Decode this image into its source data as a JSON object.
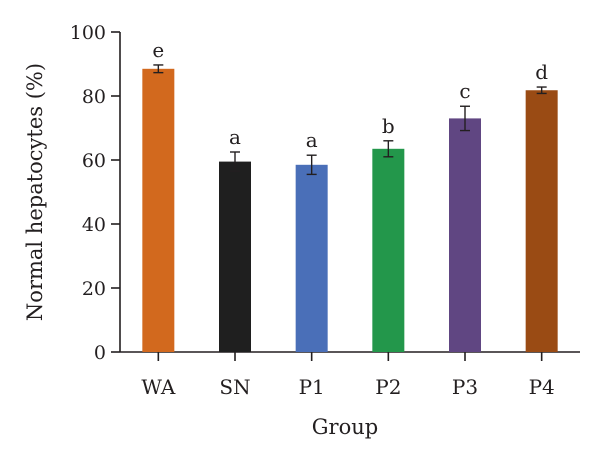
{
  "chart_data": {
    "type": "bar",
    "title": "",
    "xlabel": "Group",
    "ylabel": "Normal hepatocytes (%)",
    "ylim": [
      0,
      100
    ],
    "yticks": [
      0,
      20,
      40,
      60,
      80,
      100
    ],
    "grid": false,
    "categories": [
      "WA",
      "SN",
      "P1",
      "P2",
      "P3",
      "P4"
    ],
    "values": [
      88.5,
      59.5,
      58.5,
      63.5,
      73.0,
      81.8
    ],
    "errors": [
      1.2,
      3.0,
      3.0,
      2.5,
      3.8,
      1.0
    ],
    "significance": [
      "e",
      "a",
      "a",
      "b",
      "c",
      "d"
    ],
    "colors": [
      "#d2691e",
      "#1f1f1f",
      "#4a6fb8",
      "#23974b",
      "#604682",
      "#9a4b14"
    ]
  }
}
